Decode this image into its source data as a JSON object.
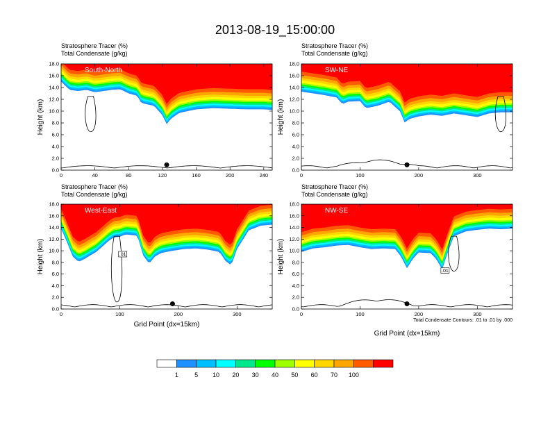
{
  "figure": {
    "title": "2013-08-19_15:00:00",
    "footnote": "Total Condensate Contours: .01 to .01 by .000"
  },
  "colorbar": {
    "labels": [
      "1",
      "5",
      "10",
      "20",
      "30",
      "40",
      "50",
      "60",
      "70",
      "100"
    ],
    "colors": [
      "#ffffff",
      "#1e90ff",
      "#00bfff",
      "#00ffff",
      "#00e88c",
      "#00ff00",
      "#9eff00",
      "#ffff00",
      "#ffd700",
      "#ffa500",
      "#ff5a00",
      "#ff0000"
    ]
  },
  "chart_data": [
    {
      "type": "heatmap",
      "panel_label": "South-North",
      "header_line1": "Stratosphere Tracer   (%)",
      "header_line2": "Total Condensate   (g/kg)",
      "ylabel": "Height (km)",
      "xlabel": "",
      "xlim": [
        0,
        250
      ],
      "ylim": [
        0,
        18
      ],
      "xticks": [
        0,
        40,
        80,
        120,
        160,
        200,
        240
      ],
      "yticks": [
        "0.0",
        "2.0",
        "4.0",
        "6.0",
        "8.0",
        "10.0",
        "12.0",
        "14.0",
        "16.0",
        "18.0"
      ],
      "marker_x": 125,
      "contour_label": "",
      "tracer_base_km": [
        [
          0,
          15.0
        ],
        [
          10,
          13.6
        ],
        [
          20,
          13.4
        ],
        [
          30,
          13.6
        ],
        [
          40,
          13.2
        ],
        [
          60,
          13.6
        ],
        [
          70,
          13.7
        ],
        [
          80,
          13.0
        ],
        [
          90,
          12.6
        ],
        [
          95,
          11.4
        ],
        [
          100,
          11.2
        ],
        [
          110,
          10.9
        ],
        [
          120,
          9.3
        ],
        [
          125,
          7.8
        ],
        [
          130,
          8.7
        ],
        [
          140,
          9.7
        ],
        [
          160,
          10.3
        ],
        [
          180,
          10.5
        ],
        [
          200,
          10.4
        ],
        [
          220,
          10.3
        ],
        [
          240,
          10.3
        ],
        [
          250,
          10.2
        ]
      ]
    },
    {
      "type": "heatmap",
      "panel_label": "SW-NE",
      "header_line1": "Stratosphere Tracer   (%)",
      "header_line2": "Total Condensate   (g/kg)",
      "ylabel": "Height (km)",
      "xlabel": "",
      "xlim": [
        0,
        360
      ],
      "ylim": [
        0,
        18
      ],
      "xticks": [
        0,
        100,
        200,
        300
      ],
      "yticks": [
        "0.0",
        "2.0",
        "4.0",
        "6.0",
        "8.0",
        "10.0",
        "12.0",
        "14.0",
        "16.0",
        "18.0"
      ],
      "marker_x": 180,
      "contour_label": "",
      "tracer_base_km": [
        [
          0,
          13.3
        ],
        [
          20,
          13.0
        ],
        [
          40,
          12.7
        ],
        [
          60,
          12.3
        ],
        [
          70,
          11.2
        ],
        [
          80,
          11.6
        ],
        [
          100,
          11.7
        ],
        [
          110,
          10.5
        ],
        [
          130,
          10.9
        ],
        [
          150,
          11.6
        ],
        [
          160,
          10.7
        ],
        [
          170,
          9.8
        ],
        [
          175,
          8.0
        ],
        [
          185,
          8.7
        ],
        [
          200,
          9.1
        ],
        [
          220,
          9.4
        ],
        [
          240,
          9.2
        ],
        [
          260,
          9.6
        ],
        [
          280,
          9.3
        ],
        [
          300,
          9.0
        ],
        [
          320,
          9.6
        ],
        [
          340,
          9.8
        ],
        [
          360,
          9.8
        ]
      ]
    },
    {
      "type": "heatmap",
      "panel_label": "West-East",
      "header_line1": "Stratosphere Tracer   (%)",
      "header_line2": "Total Condensate   (g/kg)",
      "ylabel": "Height (km)",
      "xlabel": "Grid Point (dx=15km)",
      "xlim": [
        0,
        360
      ],
      "ylim": [
        0,
        18
      ],
      "xticks": [
        0,
        100,
        200,
        300
      ],
      "yticks": [
        "0.0",
        "2.0",
        "4.0",
        "6.0",
        "8.0",
        "10.0",
        "12.0",
        "14.0",
        "16.0",
        "18.0"
      ],
      "marker_x": 190,
      "contour_label": ".01",
      "tracer_base_km": [
        [
          0,
          13.8
        ],
        [
          10,
          11.5
        ],
        [
          20,
          9.0
        ],
        [
          30,
          8.1
        ],
        [
          40,
          8.6
        ],
        [
          60,
          9.8
        ],
        [
          80,
          11.6
        ],
        [
          90,
          12.3
        ],
        [
          100,
          12.4
        ],
        [
          110,
          12.8
        ],
        [
          130,
          12.6
        ],
        [
          140,
          9.2
        ],
        [
          150,
          7.8
        ],
        [
          160,
          9.0
        ],
        [
          170,
          9.6
        ],
        [
          190,
          10.0
        ],
        [
          210,
          10.3
        ],
        [
          230,
          10.4
        ],
        [
          250,
          10.2
        ],
        [
          270,
          9.8
        ],
        [
          280,
          8.3
        ],
        [
          290,
          7.5
        ],
        [
          300,
          10.3
        ],
        [
          320,
          13.5
        ],
        [
          340,
          14.3
        ],
        [
          360,
          14.5
        ]
      ]
    },
    {
      "type": "heatmap",
      "panel_label": "NW-SE",
      "header_line1": "Stratosphere Tracer   (%)",
      "header_line2": "Total Condensate   (g/kg)",
      "ylabel": "Height (km)",
      "xlabel": "Grid Point (dx=15km)",
      "xlim": [
        0,
        360
      ],
      "ylim": [
        0,
        18
      ],
      "xticks": [
        0,
        100,
        200,
        300
      ],
      "yticks": [
        "0.0",
        "2.0",
        "4.0",
        "6.0",
        "8.0",
        "10.0",
        "12.0",
        "14.0",
        "16.0",
        "18.0"
      ],
      "marker_x": 180,
      "contour_label": ".01",
      "tracer_base_km": [
        [
          0,
          9.8
        ],
        [
          20,
          10.4
        ],
        [
          40,
          10.6
        ],
        [
          60,
          10.9
        ],
        [
          80,
          11.0
        ],
        [
          100,
          10.6
        ],
        [
          120,
          10.3
        ],
        [
          140,
          10.4
        ],
        [
          160,
          10.3
        ],
        [
          170,
          9.0
        ],
        [
          180,
          7.0
        ],
        [
          190,
          8.6
        ],
        [
          200,
          9.7
        ],
        [
          220,
          9.6
        ],
        [
          230,
          8.6
        ],
        [
          240,
          6.8
        ],
        [
          250,
          9.8
        ],
        [
          260,
          12.5
        ],
        [
          280,
          13.3
        ],
        [
          300,
          13.6
        ],
        [
          320,
          13.8
        ],
        [
          340,
          13.7
        ],
        [
          360,
          13.8
        ]
      ]
    }
  ]
}
